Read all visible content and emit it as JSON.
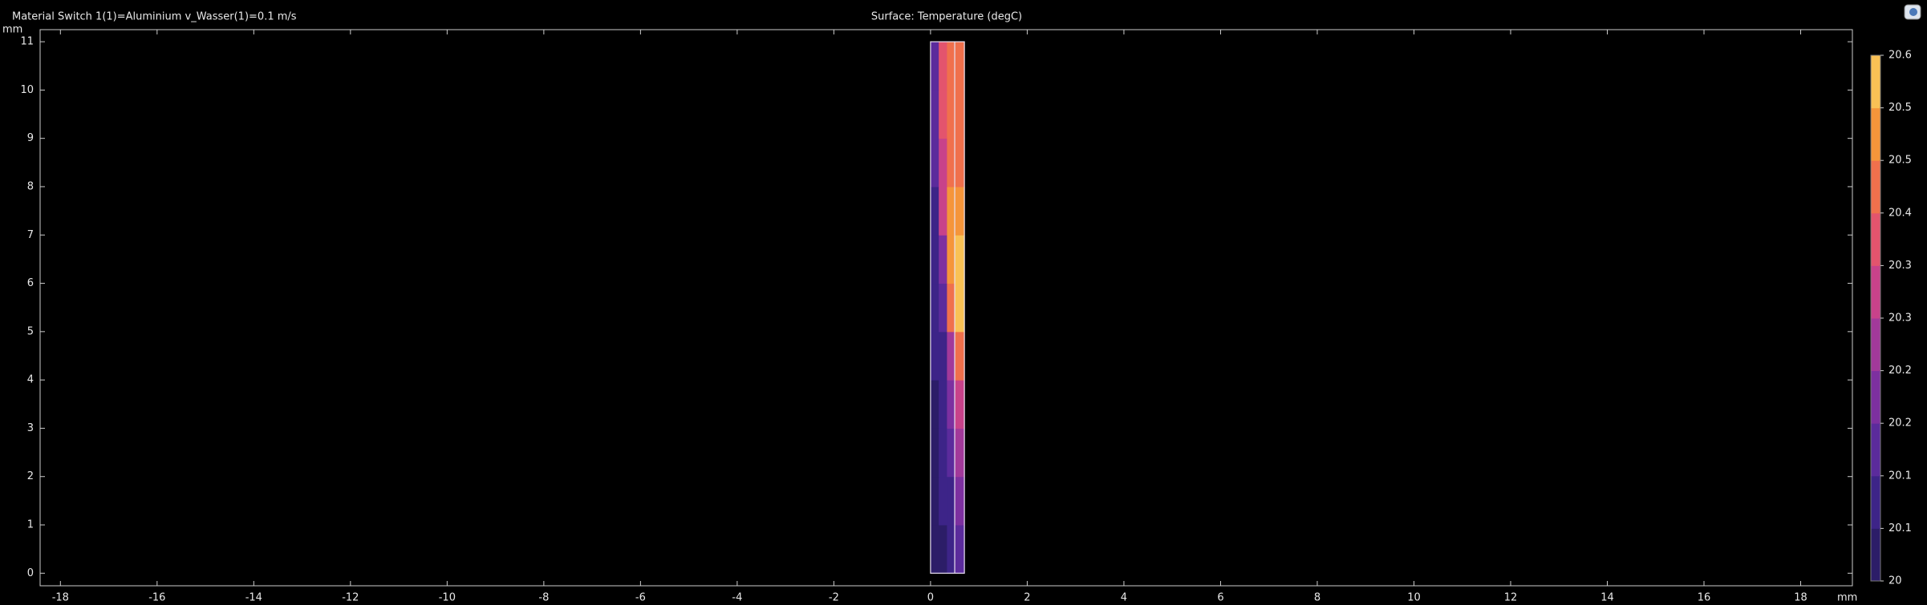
{
  "chart_data": {
    "type": "surface",
    "title": "Surface: Temperature (degC)",
    "subtitle": "Material Switch 1(1)=Aluminium v_Wasser(1)=0.1 m/s",
    "x_unit": "mm",
    "y_unit": "mm",
    "xlim": [
      -18.42,
      19.07
    ],
    "ylim": [
      -0.26,
      11.25
    ],
    "xticks": [
      -18,
      -16,
      -14,
      -12,
      -10,
      -8,
      -6,
      -4,
      -2,
      0,
      2,
      4,
      6,
      8,
      10,
      12,
      14,
      16,
      18
    ],
    "yticks": [
      0,
      1,
      2,
      3,
      4,
      5,
      6,
      7,
      8,
      9,
      10,
      11
    ],
    "x_edges": [
      0,
      0.17,
      0.34,
      0.5,
      0.7
    ],
    "y_edges": [
      0,
      1,
      2,
      3,
      4,
      5,
      6,
      7,
      8,
      9,
      10,
      11
    ],
    "values": [
      [
        20.03,
        20.05,
        20.08,
        20.17
      ],
      [
        20.04,
        20.06,
        20.1,
        20.2
      ],
      [
        20.05,
        20.07,
        20.12,
        20.25
      ],
      [
        20.05,
        20.08,
        20.18,
        20.33
      ],
      [
        20.06,
        20.1,
        20.28,
        20.42
      ],
      [
        20.07,
        20.15,
        20.42,
        20.55
      ],
      [
        20.08,
        20.22,
        20.5,
        20.55
      ],
      [
        20.1,
        20.3,
        20.48,
        20.48
      ],
      [
        20.12,
        20.34,
        20.45,
        20.45
      ],
      [
        20.14,
        20.35,
        20.44,
        20.43
      ],
      [
        20.15,
        20.36,
        20.43,
        20.42
      ]
    ],
    "clim": [
      20,
      20.57
    ],
    "colormap": [
      "#2c1d68",
      "#3d2488",
      "#5b2b9c",
      "#7d30a0",
      "#a2399a",
      "#c8428a",
      "#e3546d",
      "#f0704c",
      "#f5953a",
      "#f9c155"
    ],
    "cticks": [
      {
        "value": 20,
        "label": "20"
      },
      {
        "value": 20.057,
        "label": "20.1"
      },
      {
        "value": 20.114,
        "label": "20.1"
      },
      {
        "value": 20.171,
        "label": "20.2"
      },
      {
        "value": 20.228,
        "label": "20.2"
      },
      {
        "value": 20.285,
        "label": "20.3"
      },
      {
        "value": 20.342,
        "label": "20.3"
      },
      {
        "value": 20.399,
        "label": "20.4"
      },
      {
        "value": 20.456,
        "label": "20.5"
      },
      {
        "value": 20.513,
        "label": "20.5"
      },
      {
        "value": 20.57,
        "label": "20.6"
      }
    ]
  }
}
